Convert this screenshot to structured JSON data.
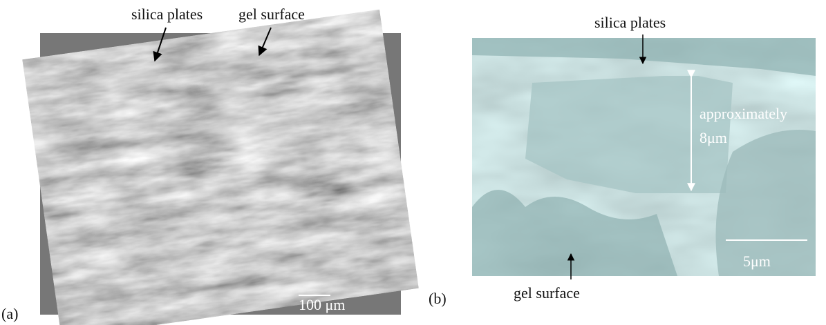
{
  "panel_a": {
    "label": "(a)",
    "annotations": [
      "silica plates",
      "gel surface"
    ],
    "scale_bar": "100 μm"
  },
  "panel_b": {
    "label": "(b)",
    "annotations": [
      "silica plates",
      "gel surface"
    ],
    "measurement": [
      "approximately",
      "8μm"
    ],
    "scale_bar": "5μm"
  }
}
